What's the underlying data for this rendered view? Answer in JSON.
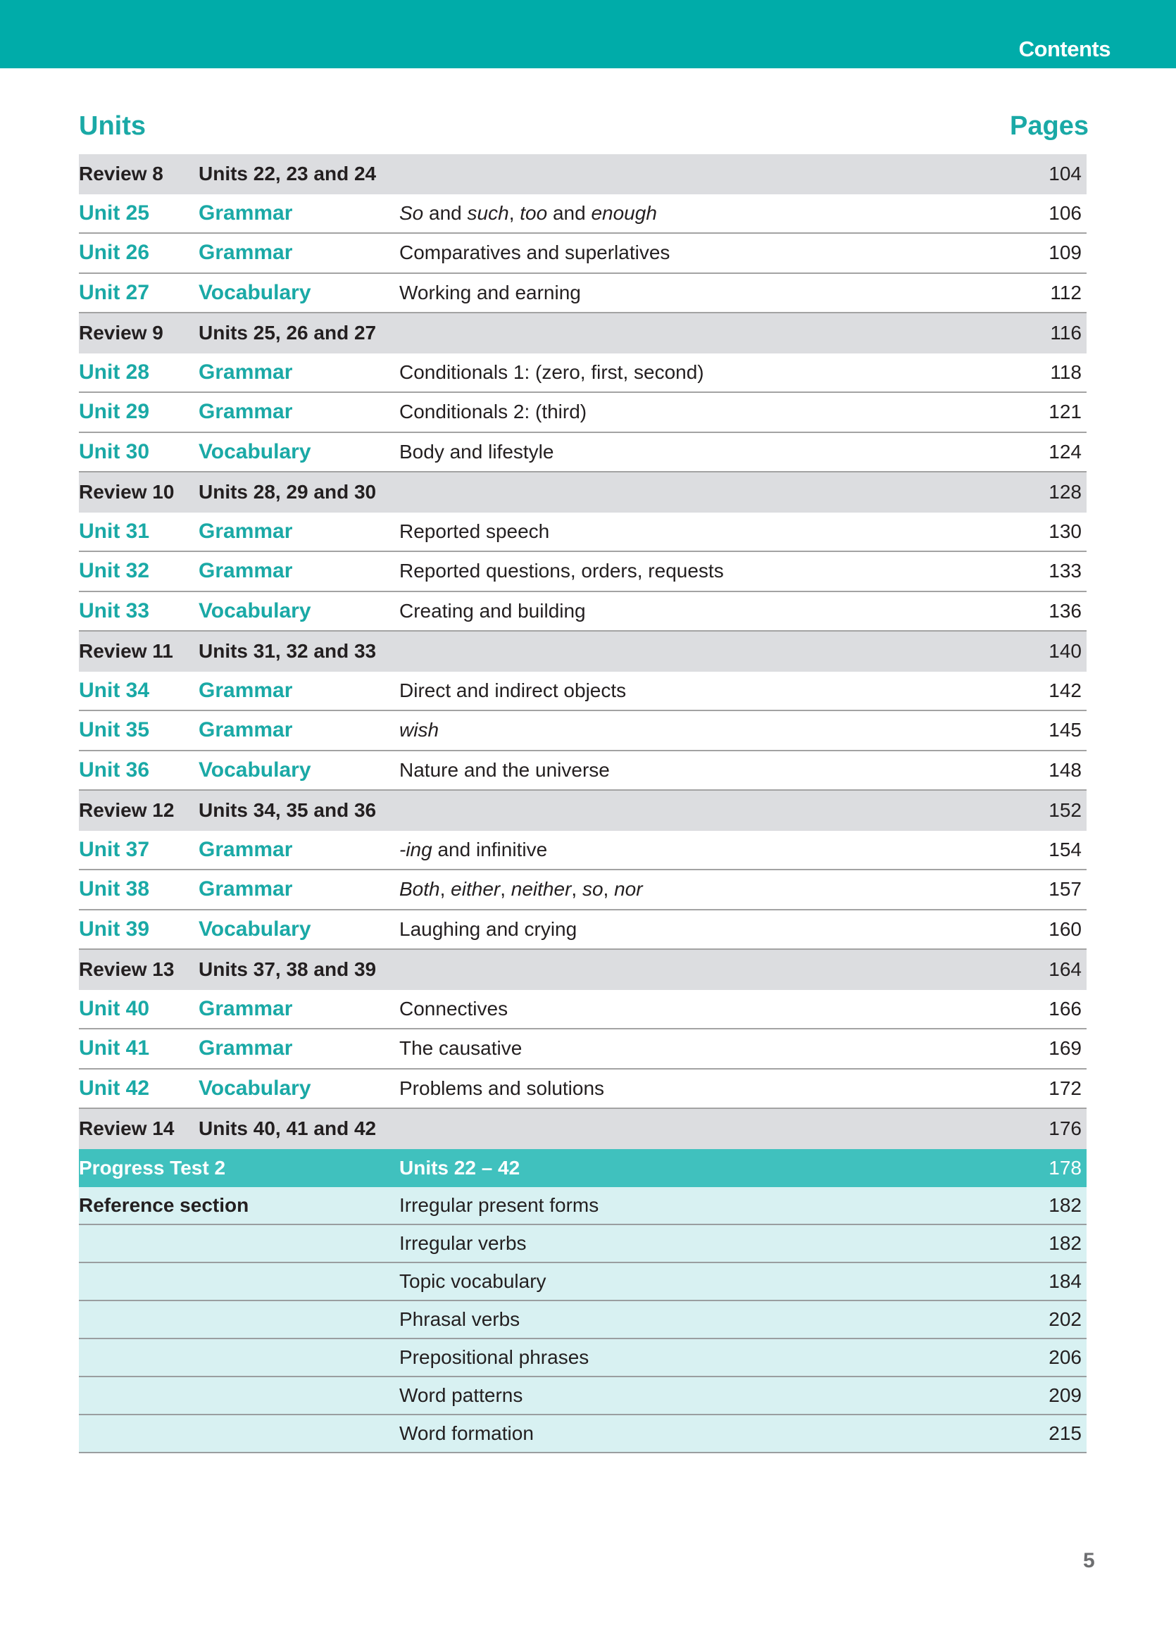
{
  "header": {
    "title": "Contents",
    "color": "#00aca9"
  },
  "columns": {
    "units": "Units",
    "pages": "Pages"
  },
  "rows": [
    {
      "type": "review",
      "label": "Review 8",
      "units": "Units 22, 23 and 24",
      "page": "104"
    },
    {
      "type": "unit",
      "label": "Unit 25",
      "category": "Grammar",
      "topic": [
        {
          "t": "So",
          "i": true
        },
        {
          "t": " and "
        },
        {
          "t": "such",
          "i": true
        },
        {
          "t": ", "
        },
        {
          "t": "too",
          "i": true
        },
        {
          "t": " and "
        },
        {
          "t": "enough",
          "i": true
        }
      ],
      "page": "106"
    },
    {
      "type": "unit",
      "label": "Unit 26",
      "category": "Grammar",
      "topic": [
        {
          "t": "Comparatives and superlatives"
        }
      ],
      "page": "109"
    },
    {
      "type": "unit",
      "label": "Unit 27",
      "category": "Vocabulary",
      "topic": [
        {
          "t": "Working and earning"
        }
      ],
      "page": "112"
    },
    {
      "type": "review",
      "label": "Review 9",
      "units": "Units 25, 26 and 27",
      "page": "116"
    },
    {
      "type": "unit",
      "label": "Unit 28",
      "category": "Grammar",
      "topic": [
        {
          "t": "Conditionals 1: (zero, first, second)"
        }
      ],
      "page": "118"
    },
    {
      "type": "unit",
      "label": "Unit 29",
      "category": "Grammar",
      "topic": [
        {
          "t": "Conditionals 2: (third)"
        }
      ],
      "page": "121"
    },
    {
      "type": "unit",
      "label": "Unit 30",
      "category": "Vocabulary",
      "topic": [
        {
          "t": "Body and lifestyle"
        }
      ],
      "page": "124"
    },
    {
      "type": "review",
      "label": "Review 10",
      "units": "Units 28, 29 and 30",
      "page": "128"
    },
    {
      "type": "unit",
      "label": "Unit 31",
      "category": "Grammar",
      "topic": [
        {
          "t": "Reported speech"
        }
      ],
      "page": "130"
    },
    {
      "type": "unit",
      "label": "Unit 32",
      "category": "Grammar",
      "topic": [
        {
          "t": "Reported questions, orders, requests"
        }
      ],
      "page": "133"
    },
    {
      "type": "unit",
      "label": "Unit 33",
      "category": "Vocabulary",
      "topic": [
        {
          "t": "Creating and building"
        }
      ],
      "page": "136"
    },
    {
      "type": "review",
      "label": "Review 11",
      "units": "Units 31, 32 and 33",
      "page": "140"
    },
    {
      "type": "unit",
      "label": "Unit 34",
      "category": "Grammar",
      "topic": [
        {
          "t": "Direct and indirect objects"
        }
      ],
      "page": "142"
    },
    {
      "type": "unit",
      "label": "Unit 35",
      "category": "Grammar",
      "topic": [
        {
          "t": "wish",
          "i": true
        }
      ],
      "page": "145"
    },
    {
      "type": "unit",
      "label": "Unit 36",
      "category": "Vocabulary",
      "topic": [
        {
          "t": "Nature and the universe"
        }
      ],
      "page": "148"
    },
    {
      "type": "review",
      "label": "Review 12",
      "units": "Units 34, 35 and 36",
      "page": "152"
    },
    {
      "type": "unit",
      "label": "Unit 37",
      "category": "Grammar",
      "topic": [
        {
          "t": "-ing",
          "i": true
        },
        {
          "t": " and infinitive"
        }
      ],
      "page": "154"
    },
    {
      "type": "unit",
      "label": "Unit 38",
      "category": "Grammar",
      "topic": [
        {
          "t": "Both",
          "i": true
        },
        {
          "t": ", "
        },
        {
          "t": "either",
          "i": true
        },
        {
          "t": ", "
        },
        {
          "t": "neither",
          "i": true
        },
        {
          "t": ", "
        },
        {
          "t": "so",
          "i": true
        },
        {
          "t": ", "
        },
        {
          "t": "nor",
          "i": true
        }
      ],
      "page": "157"
    },
    {
      "type": "unit",
      "label": "Unit 39",
      "category": "Vocabulary",
      "topic": [
        {
          "t": "Laughing and crying"
        }
      ],
      "page": "160"
    },
    {
      "type": "review",
      "label": "Review 13",
      "units": "Units 37, 38 and 39",
      "page": "164"
    },
    {
      "type": "unit",
      "label": "Unit 40",
      "category": "Grammar",
      "topic": [
        {
          "t": "Connectives"
        }
      ],
      "page": "166"
    },
    {
      "type": "unit",
      "label": "Unit 41",
      "category": "Grammar",
      "topic": [
        {
          "t": "The causative"
        }
      ],
      "page": "169"
    },
    {
      "type": "unit",
      "label": "Unit 42",
      "category": "Vocabulary",
      "topic": [
        {
          "t": "Problems and solutions"
        }
      ],
      "page": "172"
    },
    {
      "type": "review",
      "label": "Review 14",
      "units": "Units 40, 41 and 42",
      "page": "176"
    },
    {
      "type": "progress",
      "label": "Progress Test 2",
      "units": "Units 22 – 42",
      "page": "178"
    },
    {
      "type": "ref",
      "label": "Reference section",
      "topic": [
        {
          "t": "Irregular present forms"
        }
      ],
      "page": "182"
    },
    {
      "type": "ref",
      "label": "",
      "topic": [
        {
          "t": "Irregular verbs"
        }
      ],
      "page": "182"
    },
    {
      "type": "ref",
      "label": "",
      "topic": [
        {
          "t": "Topic vocabulary"
        }
      ],
      "page": "184"
    },
    {
      "type": "ref",
      "label": "",
      "topic": [
        {
          "t": "Phrasal verbs"
        }
      ],
      "page": "202"
    },
    {
      "type": "ref",
      "label": "",
      "topic": [
        {
          "t": "Prepositional phrases"
        }
      ],
      "page": "206"
    },
    {
      "type": "ref",
      "label": "",
      "topic": [
        {
          "t": "Word patterns"
        }
      ],
      "page": "209"
    },
    {
      "type": "ref",
      "label": "",
      "topic": [
        {
          "t": "Word formation"
        }
      ],
      "page": "215"
    }
  ],
  "page_number": "5"
}
